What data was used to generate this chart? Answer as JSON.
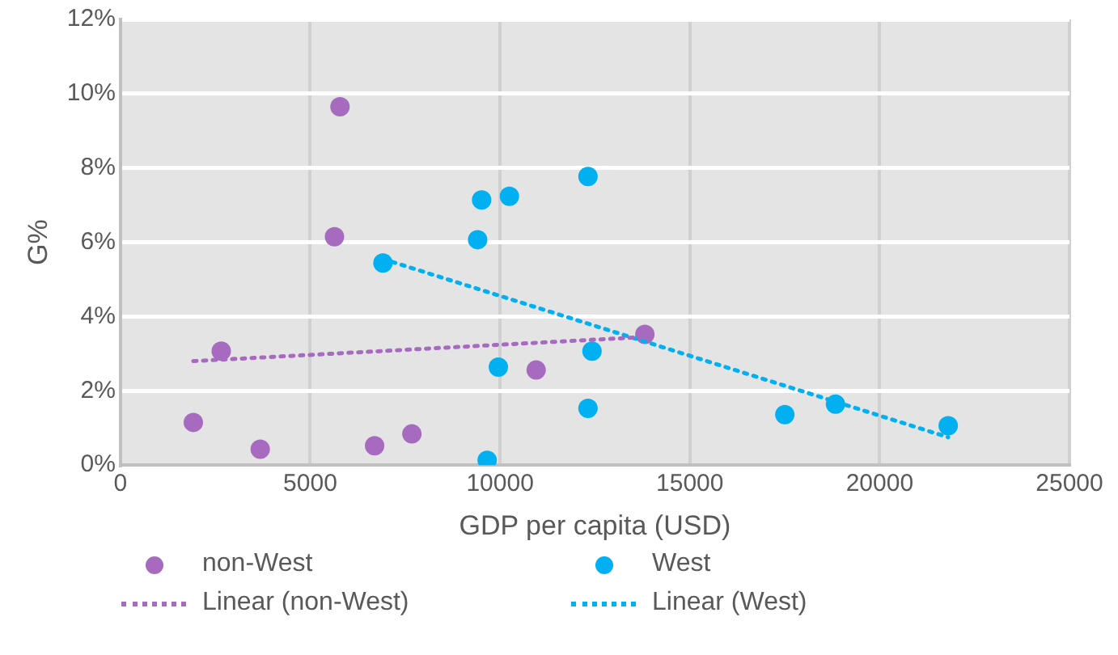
{
  "chart_data": {
    "type": "scatter",
    "xlabel": "GDP per capita (USD)",
    "ylabel": "G%",
    "xlim": [
      0,
      25000
    ],
    "xticks": [
      0,
      5000,
      10000,
      15000,
      20000,
      25000
    ],
    "ylim": [
      0,
      12
    ],
    "yticks": [
      {
        "value": 0,
        "label": "0%"
      },
      {
        "value": 2,
        "label": "2%"
      },
      {
        "value": 4,
        "label": "4%"
      },
      {
        "value": 6,
        "label": "6%"
      },
      {
        "value": 8,
        "label": "8%"
      },
      {
        "value": 10,
        "label": "10%"
      },
      {
        "value": 12,
        "label": "12%"
      }
    ],
    "grid": true,
    "legend": "bottom",
    "marker": "circle",
    "series": [
      {
        "name": "non-West",
        "type": "scatter",
        "color": "#a66bbe",
        "x": [
          1921,
          2656,
          3683,
          5784,
          5639,
          6696,
          7678,
          10952,
          13815
        ],
        "values": [
          1.15,
          3.07,
          0.43,
          9.65,
          6.15,
          0.52,
          0.84,
          2.56,
          3.52
        ]
      },
      {
        "name": "West",
        "type": "scatter",
        "color": "#00b0f0",
        "x": [
          6916,
          9410,
          9515,
          10247,
          12317,
          9956,
          12423,
          12317,
          9661,
          17502,
          18837,
          21806
        ],
        "values": [
          5.44,
          6.07,
          7.14,
          7.24,
          7.77,
          2.64,
          3.07,
          1.53,
          0.13,
          1.36,
          1.64,
          1.06
        ]
      },
      {
        "name": "Linear (non-West)",
        "type": "line",
        "line_style": "dotted",
        "marker": "none",
        "color": "#a66bbe",
        "x": [
          1921,
          13815
        ],
        "values": [
          2.8,
          3.45
        ]
      },
      {
        "name": "Linear (West)",
        "type": "line",
        "line_style": "dotted",
        "marker": "none",
        "color": "#00b0f0",
        "x": [
          6916,
          21806
        ],
        "values": [
          5.55,
          0.75
        ]
      }
    ]
  }
}
